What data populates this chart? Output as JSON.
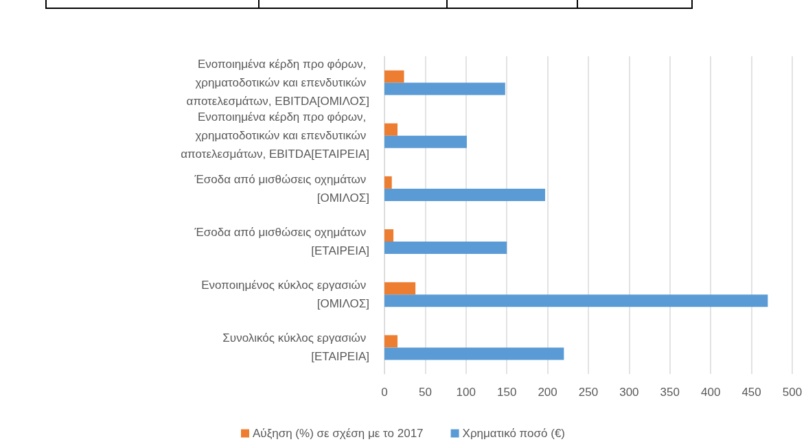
{
  "chart_data": {
    "type": "bar",
    "orientation": "horizontal",
    "categories": [
      "Ενοποιημένα κέρδη προ φόρων, χρηματοδοτικών και επενδυτικών αποτελεσμάτων, EBITDA[ΟΜΙΛΟΣ]",
      "Ενοποιημένα κέρδη προ φόρων, χρηματοδοτικών και επενδυτικών αποτελεσμάτων, EBITDA[ΕΤΑΙΡΕΙΑ]",
      "Έσοδα από μισθώσεις οχημάτων [ΟΜΙΛΟΣ]",
      "Έσοδα από μισθώσεις οχημάτων [ΕΤΑΙΡΕΙΑ]",
      "Ενοποιημένος κύκλος εργασιών [ΟΜΙΛΟΣ]",
      "Συνολικός κύκλος εργασιών [ΕΤΑΙΡΕΙΑ]"
    ],
    "series": [
      {
        "name": "Αύξηση (%) σε σχέση με το 2017",
        "color": "#ed7d31",
        "values": [
          24,
          16,
          9,
          11,
          38,
          16
        ]
      },
      {
        "name": "Χρηματικό ποσό (€)",
        "color": "#5b9bd5",
        "values": [
          148,
          101,
          197,
          150,
          470,
          220
        ]
      }
    ],
    "xlim": [
      0,
      500
    ],
    "xticks": [
      0,
      50,
      100,
      150,
      200,
      250,
      300,
      350,
      400,
      450,
      500
    ],
    "grid": "x",
    "legend": "bottom"
  }
}
